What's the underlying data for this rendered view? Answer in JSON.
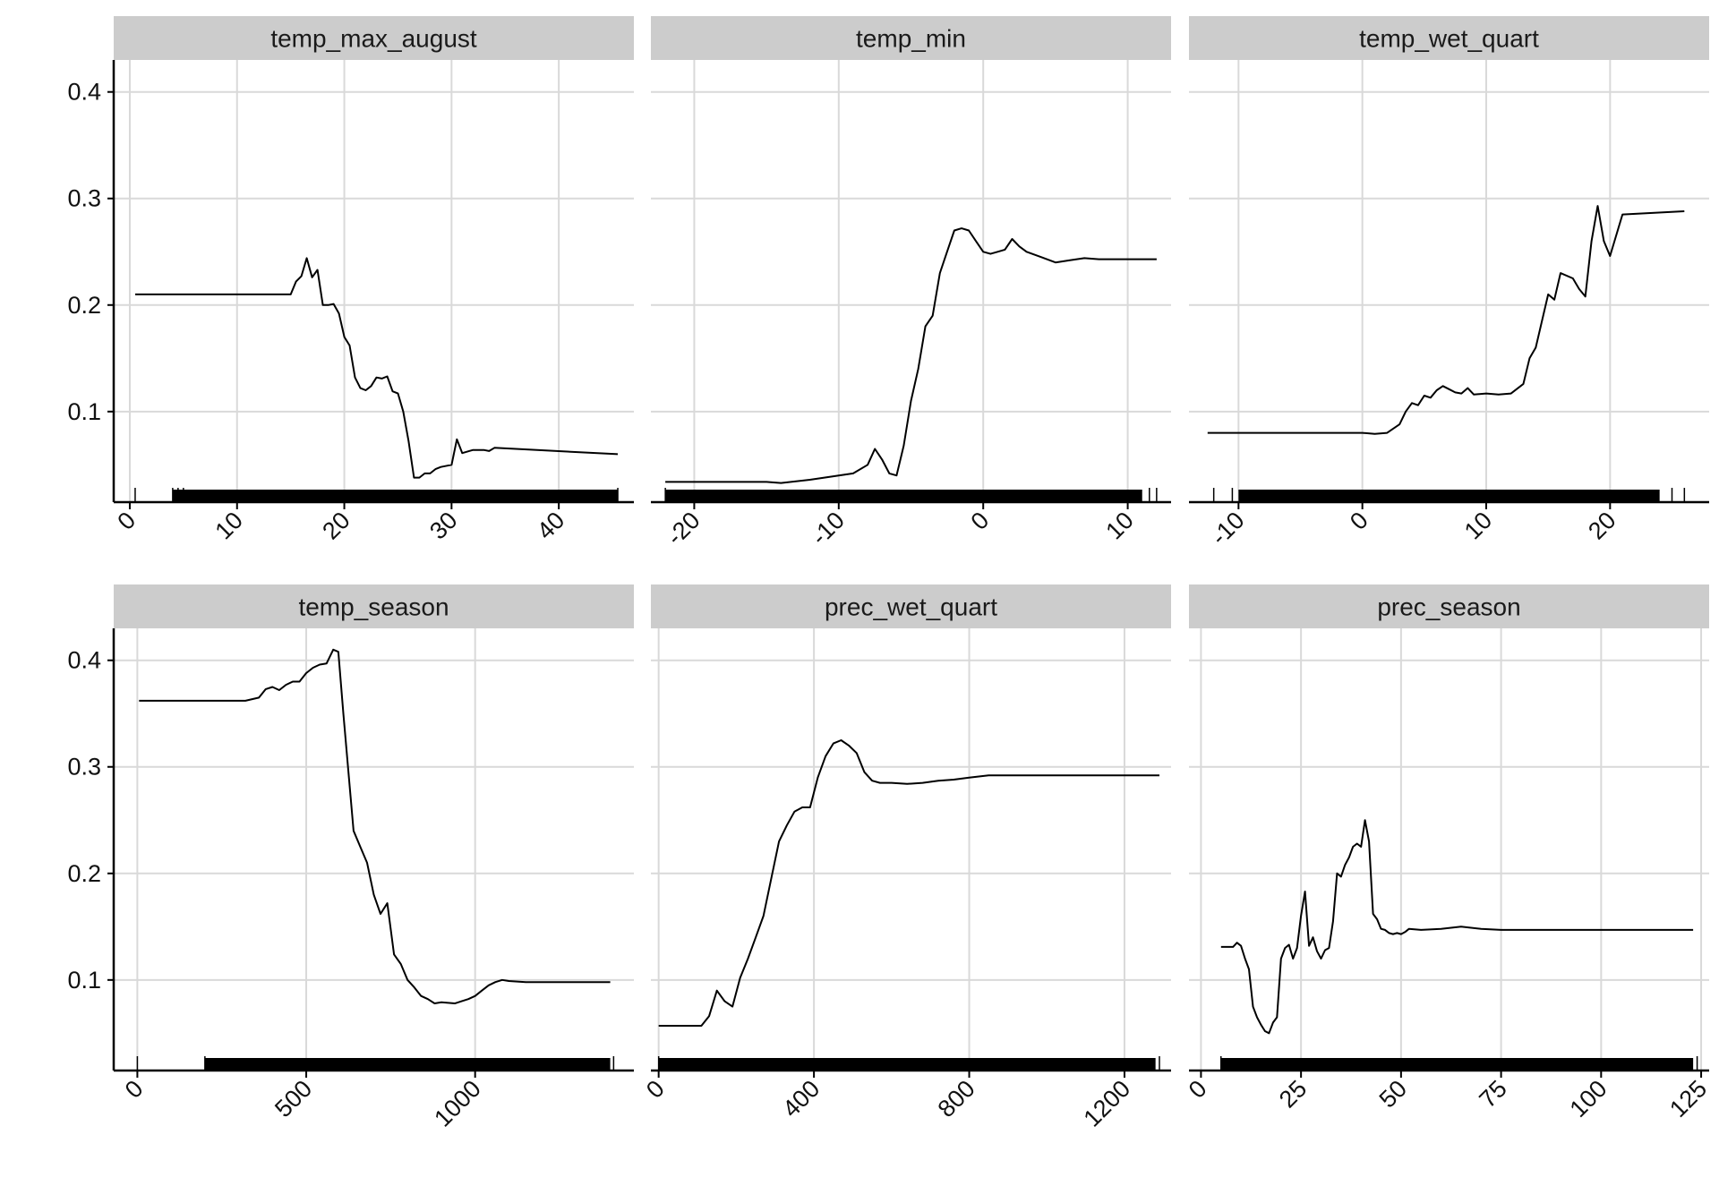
{
  "chart_data": [
    {
      "type": "line",
      "title": "temp_max_august",
      "xlim": [
        -1.5,
        47
      ],
      "ylim": [
        0.015,
        0.43
      ],
      "xticks": [
        0,
        10,
        20,
        30,
        40
      ],
      "yticks": [
        0.1,
        0.2,
        0.3,
        0.4
      ],
      "rug": {
        "band": [
          4,
          45.5
        ],
        "ticks": [
          0.5,
          4,
          4.5,
          5,
          45.5
        ]
      },
      "series": [
        {
          "x": [
            0.5,
            14,
            15,
            15.5,
            16,
            16.5,
            17,
            17.5,
            18,
            18.5,
            19,
            19.5,
            20,
            20.5,
            21,
            21.5,
            22,
            22.5,
            23,
            23.5,
            24,
            24.5,
            25,
            25.5,
            26,
            26.5,
            27,
            27.5,
            28,
            28.5,
            29,
            30,
            30.5,
            31,
            32,
            33,
            33.5,
            34,
            45.5
          ],
          "y": [
            0.21,
            0.21,
            0.21,
            0.222,
            0.227,
            0.244,
            0.226,
            0.233,
            0.2,
            0.2,
            0.201,
            0.192,
            0.17,
            0.162,
            0.132,
            0.122,
            0.12,
            0.124,
            0.132,
            0.131,
            0.133,
            0.119,
            0.117,
            0.1,
            0.072,
            0.038,
            0.038,
            0.042,
            0.042,
            0.046,
            0.048,
            0.05,
            0.074,
            0.061,
            0.064,
            0.064,
            0.063,
            0.066,
            0.06
          ]
        }
      ]
    },
    {
      "type": "line",
      "title": "temp_min",
      "xlim": [
        -23,
        13
      ],
      "ylim": [
        0.015,
        0.43
      ],
      "xticks": [
        -20,
        -10,
        0,
        10
      ],
      "yticks": [
        0.1,
        0.2,
        0.3,
        0.4
      ],
      "rug": {
        "band": [
          -22,
          11
        ],
        "ticks": [
          -22,
          11.5,
          12
        ]
      },
      "series": [
        {
          "x": [
            -22,
            -15,
            -14,
            -12,
            -11,
            -10,
            -9,
            -8,
            -7.5,
            -7,
            -6.5,
            -6,
            -5.5,
            -5,
            -4.5,
            -4,
            -3.5,
            -3,
            -2.5,
            -2,
            -1.5,
            -1,
            -0.5,
            0,
            0.5,
            1,
            1.5,
            2,
            2.5,
            3,
            4,
            5,
            6,
            7,
            8,
            12
          ],
          "y": [
            0.034,
            0.034,
            0.033,
            0.036,
            0.038,
            0.04,
            0.042,
            0.05,
            0.065,
            0.055,
            0.042,
            0.04,
            0.068,
            0.11,
            0.14,
            0.18,
            0.19,
            0.23,
            0.25,
            0.27,
            0.272,
            0.27,
            0.26,
            0.25,
            0.248,
            0.25,
            0.252,
            0.262,
            0.255,
            0.25,
            0.245,
            0.24,
            0.242,
            0.244,
            0.243,
            0.243
          ]
        }
      ]
    },
    {
      "type": "line",
      "title": "temp_wet_quart",
      "xlim": [
        -14,
        28
      ],
      "ylim": [
        0.015,
        0.43
      ],
      "xticks": [
        -10,
        0,
        10,
        20
      ],
      "yticks": [
        0.1,
        0.2,
        0.3,
        0.4
      ],
      "rug": {
        "band": [
          -10,
          24
        ],
        "ticks": [
          -12,
          -10.5,
          25,
          26
        ]
      },
      "series": [
        {
          "x": [
            -12.5,
            0,
            1,
            2,
            3,
            3.5,
            4,
            4.5,
            5,
            5.5,
            6,
            6.5,
            7,
            7.5,
            8,
            8.5,
            9,
            10,
            11,
            12,
            13,
            13.5,
            14,
            15,
            15.5,
            16,
            17,
            17.5,
            18,
            18.5,
            19,
            19.5,
            20,
            21,
            26
          ],
          "y": [
            0.08,
            0.08,
            0.079,
            0.08,
            0.088,
            0.1,
            0.108,
            0.106,
            0.115,
            0.113,
            0.12,
            0.124,
            0.121,
            0.118,
            0.117,
            0.122,
            0.116,
            0.117,
            0.116,
            0.117,
            0.126,
            0.15,
            0.16,
            0.21,
            0.205,
            0.23,
            0.225,
            0.215,
            0.208,
            0.26,
            0.293,
            0.26,
            0.246,
            0.285,
            0.288
          ]
        }
      ]
    },
    {
      "type": "line",
      "title": "temp_season",
      "xlim": [
        -70,
        1470
      ],
      "ylim": [
        0.015,
        0.43
      ],
      "xticks": [
        0,
        500,
        1000
      ],
      "yticks": [
        0.1,
        0.2,
        0.3,
        0.4
      ],
      "rug": {
        "band": [
          200,
          1400
        ],
        "ticks": [
          0,
          200,
          1410
        ]
      },
      "series": [
        {
          "x": [
            5,
            320,
            360,
            380,
            400,
            420,
            440,
            460,
            480,
            500,
            520,
            540,
            560,
            580,
            595,
            610,
            640,
            660,
            680,
            700,
            720,
            740,
            760,
            780,
            800,
            820,
            840,
            860,
            880,
            900,
            940,
            960,
            980,
            1000,
            1020,
            1040,
            1060,
            1080,
            1100,
            1150,
            1400
          ],
          "y": [
            0.362,
            0.362,
            0.365,
            0.373,
            0.375,
            0.372,
            0.377,
            0.38,
            0.38,
            0.388,
            0.393,
            0.396,
            0.397,
            0.41,
            0.408,
            0.35,
            0.24,
            0.225,
            0.21,
            0.18,
            0.162,
            0.172,
            0.124,
            0.115,
            0.1,
            0.093,
            0.085,
            0.082,
            0.078,
            0.079,
            0.078,
            0.08,
            0.082,
            0.085,
            0.09,
            0.095,
            0.098,
            0.1,
            0.099,
            0.098,
            0.098
          ]
        }
      ]
    },
    {
      "type": "line",
      "title": "prec_wet_quart",
      "xlim": [
        -20,
        1320
      ],
      "ylim": [
        0.015,
        0.43
      ],
      "xticks": [
        0,
        400,
        800,
        1200
      ],
      "yticks": [
        0.1,
        0.2,
        0.3,
        0.4
      ],
      "rug": {
        "band": [
          0,
          1280
        ],
        "ticks": [
          0,
          1290
        ]
      },
      "series": [
        {
          "x": [
            0,
            110,
            130,
            150,
            170,
            190,
            210,
            230,
            250,
            270,
            290,
            310,
            330,
            350,
            370,
            390,
            410,
            430,
            450,
            470,
            490,
            510,
            530,
            550,
            570,
            600,
            640,
            680,
            720,
            760,
            800,
            850,
            900,
            1290
          ],
          "y": [
            0.057,
            0.057,
            0.066,
            0.09,
            0.08,
            0.075,
            0.102,
            0.12,
            0.14,
            0.16,
            0.195,
            0.23,
            0.245,
            0.258,
            0.262,
            0.262,
            0.29,
            0.31,
            0.322,
            0.325,
            0.32,
            0.313,
            0.295,
            0.287,
            0.285,
            0.285,
            0.284,
            0.285,
            0.287,
            0.288,
            0.29,
            0.292,
            0.292,
            0.292
          ]
        }
      ]
    },
    {
      "type": "line",
      "title": "prec_season",
      "xlim": [
        -3,
        127
      ],
      "ylim": [
        0.015,
        0.43
      ],
      "xticks": [
        0,
        25,
        50,
        75,
        100,
        125
      ],
      "yticks": [
        0.1,
        0.2,
        0.3,
        0.4
      ],
      "rug": {
        "band": [
          5,
          123
        ],
        "ticks": [
          5,
          124
        ]
      },
      "series": [
        {
          "x": [
            5,
            8,
            9,
            10,
            11,
            12,
            13,
            14,
            15,
            16,
            17,
            18,
            19,
            20,
            21,
            22,
            23,
            24,
            25,
            26,
            27,
            28,
            29,
            30,
            31,
            32,
            33,
            34,
            35,
            36,
            37,
            38,
            39,
            40,
            41,
            42,
            43,
            44,
            45,
            46,
            47,
            48,
            49,
            50,
            51,
            52,
            55,
            60,
            65,
            70,
            75,
            123
          ],
          "y": [
            0.131,
            0.131,
            0.135,
            0.132,
            0.12,
            0.11,
            0.075,
            0.065,
            0.058,
            0.052,
            0.05,
            0.06,
            0.065,
            0.12,
            0.13,
            0.133,
            0.12,
            0.13,
            0.16,
            0.183,
            0.132,
            0.14,
            0.127,
            0.12,
            0.128,
            0.13,
            0.155,
            0.2,
            0.197,
            0.208,
            0.215,
            0.225,
            0.228,
            0.225,
            0.25,
            0.23,
            0.162,
            0.157,
            0.148,
            0.147,
            0.144,
            0.143,
            0.144,
            0.143,
            0.145,
            0.148,
            0.147,
            0.148,
            0.15,
            0.148,
            0.147,
            0.147
          ]
        }
      ]
    }
  ]
}
